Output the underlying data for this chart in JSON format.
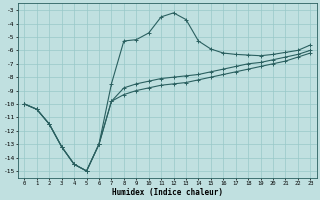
{
  "xlabel": "Humidex (Indice chaleur)",
  "bg_color": "#c0e0e0",
  "line_color": "#2a6060",
  "grid_color": "#98c8c8",
  "x_values": [
    0,
    1,
    2,
    3,
    4,
    5,
    6,
    7,
    8,
    9,
    10,
    11,
    12,
    13,
    14,
    15,
    16,
    17,
    18,
    19,
    20,
    21,
    22,
    23
  ],
  "line1": [
    -10.0,
    -10.4,
    -11.5,
    -13.2,
    -14.5,
    -15.0,
    -13.0,
    -8.5,
    -5.3,
    -5.2,
    -4.7,
    -3.5,
    -3.2,
    -3.7,
    -5.3,
    -5.9,
    -6.2,
    -6.3,
    -6.35,
    -6.4,
    -6.3,
    -6.15,
    -6.0,
    -5.6
  ],
  "line2": [
    -10.0,
    -10.4,
    -11.5,
    -13.2,
    -14.5,
    -15.0,
    -13.0,
    -9.8,
    -8.8,
    -8.5,
    -8.3,
    -8.1,
    -8.0,
    -7.9,
    -7.8,
    -7.6,
    -7.4,
    -7.2,
    -7.0,
    -6.9,
    -6.7,
    -6.5,
    -6.3,
    -6.0
  ],
  "line3": [
    -10.0,
    -10.4,
    -11.5,
    -13.2,
    -14.5,
    -15.0,
    -13.0,
    -9.8,
    -9.3,
    -9.0,
    -8.8,
    -8.6,
    -8.5,
    -8.4,
    -8.2,
    -8.0,
    -7.8,
    -7.6,
    -7.4,
    -7.2,
    -7.0,
    -6.8,
    -6.5,
    -6.2
  ],
  "ylim": [
    -15.5,
    -2.5
  ],
  "xlim": [
    -0.5,
    23.5
  ],
  "yticks": [
    -3,
    -4,
    -5,
    -6,
    -7,
    -8,
    -9,
    -10,
    -11,
    -12,
    -13,
    -14,
    -15
  ],
  "xticks": [
    0,
    1,
    2,
    3,
    4,
    5,
    6,
    7,
    8,
    9,
    10,
    11,
    12,
    13,
    14,
    15,
    16,
    17,
    18,
    19,
    20,
    21,
    22,
    23
  ]
}
